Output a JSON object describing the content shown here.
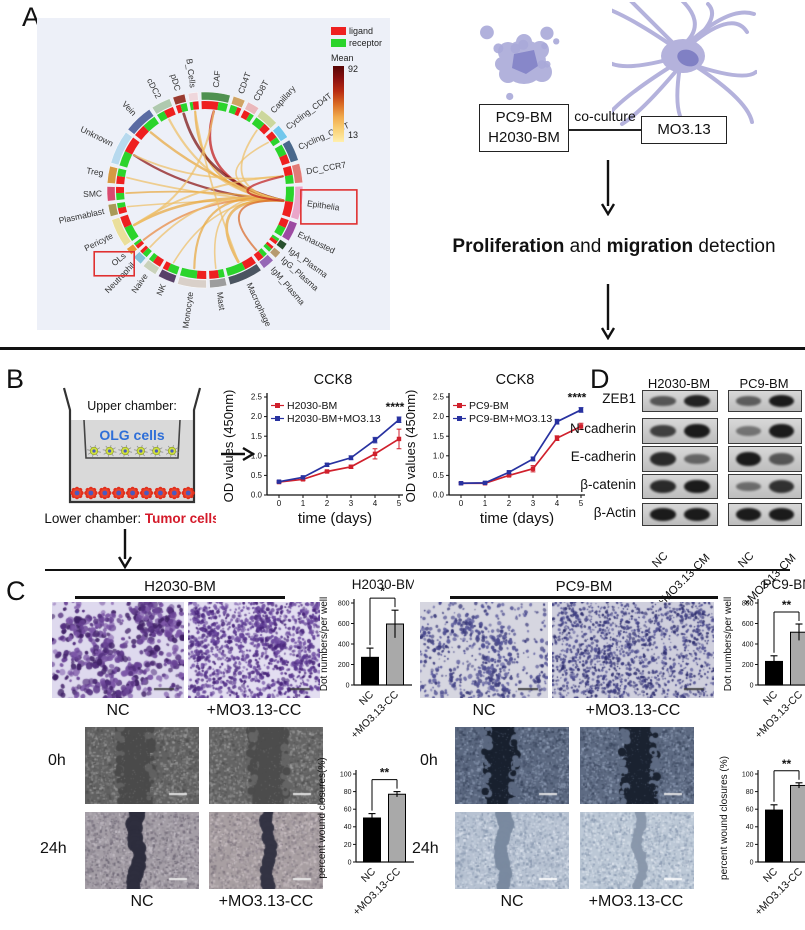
{
  "panels": {
    "a": "A",
    "b": "B",
    "c": "C",
    "d": "D"
  },
  "panelA": {
    "legend": {
      "ligand": "ligand",
      "receptor": "receptor",
      "ligand_color": "#ee2020",
      "receptor_color": "#2bd42b"
    },
    "colorbar": {
      "title": "Mean",
      "max": "92",
      "min": "13"
    },
    "cell_types": [
      {
        "name": "B_Cells",
        "color": "#efd7dc",
        "w": 2
      },
      {
        "name": "CAF",
        "color": "#4f9150",
        "w": 6
      },
      {
        "name": "CD4T",
        "color": "#cfa364",
        "w": 2.5
      },
      {
        "name": "CD8T",
        "color": "#eab8bc",
        "w": 2.5
      },
      {
        "name": "Capillary",
        "color": "#ccd79d",
        "w": 4
      },
      {
        "name": "Cycling_CD4T",
        "color": "#72c7ec",
        "w": 3
      },
      {
        "name": "Cycling_CD8T",
        "color": "#49688c",
        "w": 4.5
      },
      {
        "name": "DC_CCR7",
        "color": "#e27a76",
        "w": 4
      },
      {
        "name": "Epithelia",
        "color": "#eaa6c9",
        "w": 7,
        "boxed": true
      },
      {
        "name": "Exhausted",
        "color": "#9c4ba2",
        "w": 4
      },
      {
        "name": "IgA_Plasma",
        "color": "#28502e",
        "w": 1.5
      },
      {
        "name": "IgG_Plasma",
        "color": "#b79b70",
        "w": 1.5
      },
      {
        "name": "IgM_Plasma",
        "color": "#9668b6",
        "w": 2.5
      },
      {
        "name": "Macrophage",
        "color": "#4b5561",
        "w": 7
      },
      {
        "name": "Mast",
        "color": "#9d9d9d",
        "w": 3.5
      },
      {
        "name": "Monocyte",
        "color": "#d9d0c9",
        "w": 6
      },
      {
        "name": "NK",
        "color": "#584169",
        "w": 3.5
      },
      {
        "name": "Naive",
        "color": "#c9d2bb",
        "w": 3
      },
      {
        "name": "Neutrophil",
        "color": "#86c3da",
        "w": 2
      },
      {
        "name": "OLs",
        "color": "#e69a38",
        "w": 1.5,
        "boxed": true
      },
      {
        "name": "Pericyte",
        "color": "#eadf9b",
        "w": 6
      },
      {
        "name": "Plasmablast",
        "color": "#a89a58",
        "w": 2.5
      },
      {
        "name": "SMC",
        "color": "#d84a70",
        "w": 3
      },
      {
        "name": "Treg",
        "color": "#d69a42",
        "w": 3.5
      },
      {
        "name": "Unknown",
        "color": "#b7d9ee",
        "w": 7
      },
      {
        "name": "Vein",
        "color": "#5a6ba3",
        "w": 6
      },
      {
        "name": "cDC2",
        "color": "#afc9af",
        "w": 4
      },
      {
        "name": "pDC",
        "color": "#993a30",
        "w": 2.5
      }
    ],
    "chords": [
      {
        "f": "CAF",
        "t": "Epithelia",
        "c": "#c01818",
        "w": 2.6
      },
      {
        "f": "B_Cells",
        "t": "Epithelia",
        "c": "#e9a83f",
        "w": 2.2
      },
      {
        "f": "pDC",
        "t": "Epithelia",
        "c": "#7a0f0f",
        "w": 2.8
      },
      {
        "f": "cDC2",
        "t": "Epithelia",
        "c": "#eebf66",
        "w": 2.2
      },
      {
        "f": "Vein",
        "t": "Epithelia",
        "c": "#e9a83f",
        "w": 2.4
      },
      {
        "f": "Unknown",
        "t": "Epithelia",
        "c": "#8a1212",
        "w": 2.2
      },
      {
        "f": "Unknown",
        "t": "DC_CCR7",
        "c": "#eebf66",
        "w": 1.8
      },
      {
        "f": "Treg",
        "t": "Epithelia",
        "c": "#eebf66",
        "w": 1.8
      },
      {
        "f": "SMC",
        "t": "Epithelia",
        "c": "#e9a83f",
        "w": 1.8
      },
      {
        "f": "Plasmablast",
        "t": "Epithelia",
        "c": "#eebf66",
        "w": 1.6
      },
      {
        "f": "Pericyte",
        "t": "Epithelia",
        "c": "#e9a83f",
        "w": 2.6
      },
      {
        "f": "Pericyte",
        "t": "DC_CCR7",
        "c": "#eebf66",
        "w": 2.0
      },
      {
        "f": "OLs",
        "t": "Epithelia",
        "c": "#e9883f",
        "w": 2.0
      },
      {
        "f": "Neutrophil",
        "t": "Epithelia",
        "c": "#eebf66",
        "w": 1.8
      },
      {
        "f": "NK",
        "t": "Epithelia",
        "c": "#eebf66",
        "w": 1.6
      },
      {
        "f": "Monocyte",
        "t": "Epithelia",
        "c": "#e9a83f",
        "w": 2.2
      },
      {
        "f": "Macrophage",
        "t": "Epithelia",
        "c": "#e9a83f",
        "w": 2.8
      },
      {
        "f": "Mast",
        "t": "Epithelia",
        "c": "#eebf66",
        "w": 1.6
      },
      {
        "f": "IgM_Plasma",
        "t": "Epithelia",
        "c": "#d96a28",
        "w": 2.0
      },
      {
        "f": "Capillary",
        "t": "Epithelia",
        "c": "#eebf66",
        "w": 1.8
      },
      {
        "f": "Cycling_CD4T",
        "t": "Epithelia",
        "c": "#eebf66",
        "w": 1.6
      },
      {
        "f": "CAF",
        "t": "Pericyte",
        "c": "#eebf66",
        "w": 2.0
      },
      {
        "f": "B_Cells",
        "t": "Macrophage",
        "c": "#eebf66",
        "w": 1.8
      },
      {
        "f": "Epithelia",
        "t": "DC_CCR7",
        "c": "#c02020",
        "w": 2.2
      }
    ],
    "flow": {
      "tumor_line1": "PC9-BM",
      "tumor_line2": "H2030-BM",
      "coculture": "co-culture",
      "target": "MO3.13",
      "det_b1": "Proliferation",
      "det_mid": " and ",
      "det_b2": "migration",
      "det_tail": " detection"
    }
  },
  "panelB": {
    "upper": "Upper chamber:",
    "olg": "OLG cells",
    "lower_prefix": "Lower chamber: ",
    "lower_red": "Tumor cells"
  },
  "panelD": {
    "col1": "H2030-BM",
    "col2": "PC9-BM",
    "xlab1": "NC",
    "xlab2": "+MO3.13-CM",
    "rows": [
      {
        "label": "ZEB1",
        "h2030": [
          0.55,
          0.9
        ],
        "pc9": [
          0.5,
          0.95
        ]
      },
      {
        "label": "N-cadherin",
        "h2030": [
          0.7,
          0.95
        ],
        "pc9": [
          0.35,
          0.95
        ]
      },
      {
        "label": "E-cadherin",
        "h2030": [
          0.85,
          0.45
        ],
        "pc9": [
          0.95,
          0.55
        ]
      },
      {
        "label": "β-catenin",
        "h2030": [
          0.85,
          0.95
        ],
        "pc9": [
          0.4,
          0.8
        ]
      },
      {
        "label": "β-Actin",
        "h2030": [
          0.95,
          0.95
        ],
        "pc9": [
          0.95,
          0.95
        ]
      }
    ]
  },
  "panelC": {
    "left_header": "H2030-BM",
    "right_header": "PC9-BM",
    "nc_label": "NC",
    "cc_label": "+MO3.13-CC",
    "t0_label": "0h",
    "t24_label": "24h"
  },
  "chart_data": [
    {
      "id": "cck8_h2030",
      "type": "line",
      "title": "CCK8",
      "xlabel": "time (days)",
      "ylabel": "OD values (450nm)",
      "x": [
        0,
        1,
        2,
        3,
        4,
        5
      ],
      "ylim": [
        0,
        2.5
      ],
      "yticks": [
        0,
        0.5,
        1,
        1.5,
        2,
        2.5
      ],
      "significance": "****",
      "legend_position": "top-left",
      "grid": false,
      "series": [
        {
          "name": "H2030-BM",
          "color": "#d0202c",
          "values": [
            0.33,
            0.4,
            0.6,
            0.72,
            1.05,
            1.43
          ],
          "errors": [
            0.02,
            0.03,
            0.03,
            0.04,
            0.13,
            0.25
          ]
        },
        {
          "name": "H2030-BM+MO3.13",
          "color": "#2832a0",
          "values": [
            0.34,
            0.45,
            0.77,
            0.95,
            1.4,
            1.92
          ],
          "errors": [
            0.02,
            0.03,
            0.04,
            0.05,
            0.07,
            0.07
          ]
        }
      ]
    },
    {
      "id": "cck8_pc9",
      "type": "line",
      "title": "CCK8",
      "xlabel": "time (days)",
      "ylabel": "OD values (450nm)",
      "x": [
        0,
        1,
        2,
        3,
        4,
        5
      ],
      "ylim": [
        0,
        2.5
      ],
      "yticks": [
        0,
        0.5,
        1,
        1.5,
        2,
        2.5
      ],
      "significance": "****",
      "legend_position": "top-left",
      "grid": false,
      "series": [
        {
          "name": "PC9-BM",
          "color": "#d0202c",
          "values": [
            0.3,
            0.3,
            0.5,
            0.67,
            1.45,
            1.75
          ],
          "errors": [
            0.02,
            0.02,
            0.03,
            0.08,
            0.06,
            0.08
          ]
        },
        {
          "name": "PC9-BM+MO3.13",
          "color": "#2832a0",
          "values": [
            0.3,
            0.31,
            0.58,
            0.92,
            1.87,
            2.17
          ],
          "errors": [
            0.02,
            0.02,
            0.03,
            0.05,
            0.06,
            0.06
          ]
        }
      ]
    },
    {
      "id": "dots_h2030",
      "type": "bar",
      "title": "H2030-BM",
      "ylabel": "Dot numbers/per well",
      "categories": [
        "NC",
        "+MO3.13-CC"
      ],
      "values": [
        270,
        595
      ],
      "errors": [
        90,
        135
      ],
      "ylim": [
        0,
        800
      ],
      "yticks": [
        0,
        200,
        400,
        600,
        800
      ],
      "significance": "*",
      "bar_colors": [
        "#000000",
        "#a9a9a9"
      ]
    },
    {
      "id": "dots_pc9",
      "type": "bar",
      "title": "PC9-BM",
      "ylabel": "Dot numbers/per well",
      "categories": [
        "NC",
        "+MO3.13-CC"
      ],
      "values": [
        230,
        515
      ],
      "errors": [
        55,
        80
      ],
      "ylim": [
        0,
        800
      ],
      "yticks": [
        0,
        200,
        400,
        600,
        800
      ],
      "significance": "**",
      "bar_colors": [
        "#000000",
        "#a9a9a9"
      ]
    },
    {
      "id": "wound_h2030",
      "type": "bar",
      "title": "",
      "ylabel": "percent wound closures(%)",
      "categories": [
        "NC",
        "+MO3.13-CC"
      ],
      "values": [
        50,
        77
      ],
      "errors": [
        5,
        3
      ],
      "ylim": [
        0,
        100
      ],
      "yticks": [
        0,
        20,
        40,
        60,
        80,
        100
      ],
      "significance": "**",
      "bar_colors": [
        "#000000",
        "#a9a9a9"
      ]
    },
    {
      "id": "wound_pc9",
      "type": "bar",
      "title": "",
      "ylabel": "percent wound closures (%)",
      "categories": [
        "NC",
        "+MO3.13-CC"
      ],
      "values": [
        59,
        87
      ],
      "errors": [
        6,
        3
      ],
      "ylim": [
        0,
        100
      ],
      "yticks": [
        0,
        20,
        40,
        60,
        80,
        100
      ],
      "significance": "**",
      "bar_colors": [
        "#000000",
        "#a9a9a9"
      ]
    }
  ]
}
